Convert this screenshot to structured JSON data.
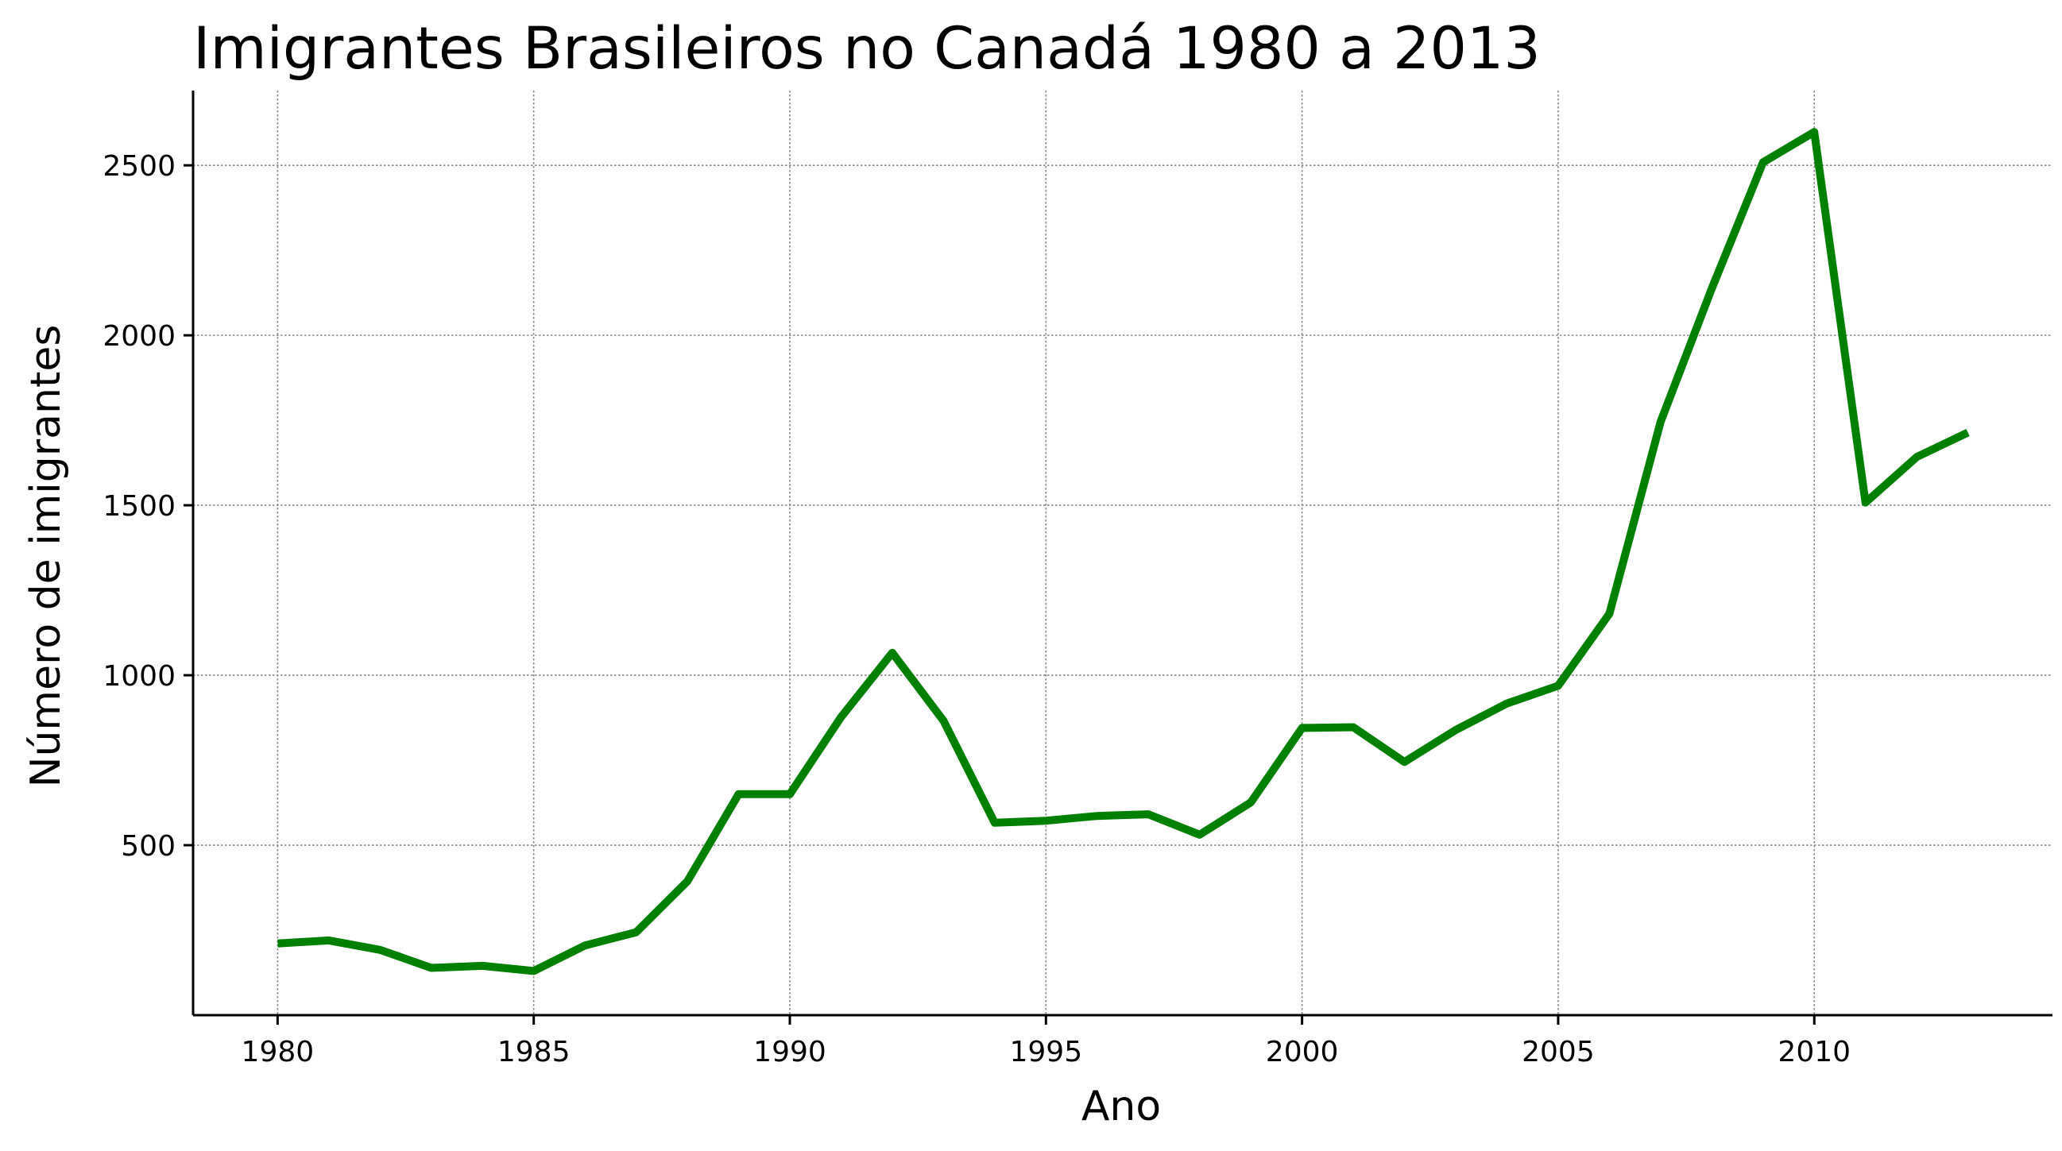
{
  "chart_data": {
    "type": "line",
    "title": "Imigrantes Brasileiros no Canadá 1980 a 2013",
    "xlabel": "Ano",
    "ylabel": "Número de imigrantes",
    "x": [
      1980,
      1981,
      1982,
      1983,
      1984,
      1985,
      1986,
      1987,
      1988,
      1989,
      1990,
      1991,
      1992,
      1993,
      1994,
      1995,
      1996,
      1997,
      1998,
      1999,
      2000,
      2001,
      2002,
      2003,
      2004,
      2005,
      2006,
      2007,
      2008,
      2009,
      2010,
      2011,
      2012,
      2013
    ],
    "series": [
      {
        "values": [
          211,
          220,
          192,
          139,
          145,
          130,
          205,
          244,
          394,
          650,
          650,
          877,
          1066,
          866,
          566,
          572,
          586,
          591,
          531,
          626,
          845,
          847,
          745,
          839,
          917,
          969,
          1181,
          1746,
          2138,
          2509,
          2598,
          1508,
          1642,
          1714
        ],
        "color": "#008000"
      }
    ],
    "xticks": [
      1980,
      1985,
      1990,
      1995,
      2000,
      2005,
      2010
    ],
    "yticks": [
      500,
      1000,
      1500,
      2000,
      2500
    ],
    "xlim": [
      1978.35,
      2014.65
    ],
    "ylim": [
      0,
      2720
    ],
    "grid": true,
    "legend": "none",
    "spines": "left-bottom"
  }
}
